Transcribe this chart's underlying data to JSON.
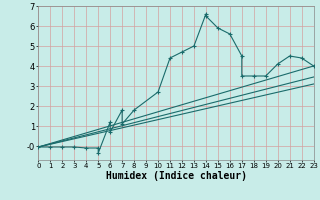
{
  "title": "",
  "xlabel": "Humidex (Indice chaleur)",
  "bg_color": "#c8ece8",
  "line_color": "#1a6b6b",
  "grid_color": "#d4a0a0",
  "main_line": {
    "x": [
      0,
      1,
      2,
      3,
      4,
      5,
      5,
      6,
      6,
      7,
      7,
      8,
      10,
      11,
      12,
      13,
      14,
      14,
      15,
      16,
      17,
      17,
      18,
      19,
      20,
      21,
      22,
      23
    ],
    "y": [
      -0.05,
      -0.05,
      -0.05,
      -0.05,
      -0.1,
      -0.1,
      -0.35,
      1.2,
      0.7,
      1.8,
      1.1,
      1.8,
      2.7,
      4.4,
      4.7,
      5.0,
      6.6,
      6.5,
      5.9,
      5.6,
      4.5,
      3.5,
      3.5,
      3.5,
      4.1,
      4.5,
      4.4,
      4.0
    ]
  },
  "ref_lines": [
    {
      "x": [
        0,
        23
      ],
      "y": [
        -0.05,
        4.0
      ]
    },
    {
      "x": [
        0,
        23
      ],
      "y": [
        -0.05,
        3.45
      ]
    },
    {
      "x": [
        0,
        23
      ],
      "y": [
        -0.05,
        3.1
      ]
    }
  ],
  "xlim": [
    0,
    23
  ],
  "ylim": [
    -0.7,
    7.0
  ],
  "xticks": [
    0,
    1,
    2,
    3,
    4,
    5,
    6,
    7,
    8,
    9,
    10,
    11,
    12,
    13,
    14,
    15,
    16,
    17,
    18,
    19,
    20,
    21,
    22,
    23
  ],
  "yticks": [
    0,
    1,
    2,
    3,
    4,
    5,
    6,
    7
  ],
  "ytick_labels": [
    "-0",
    "1",
    "2",
    "3",
    "4",
    "5",
    "6",
    "7"
  ]
}
